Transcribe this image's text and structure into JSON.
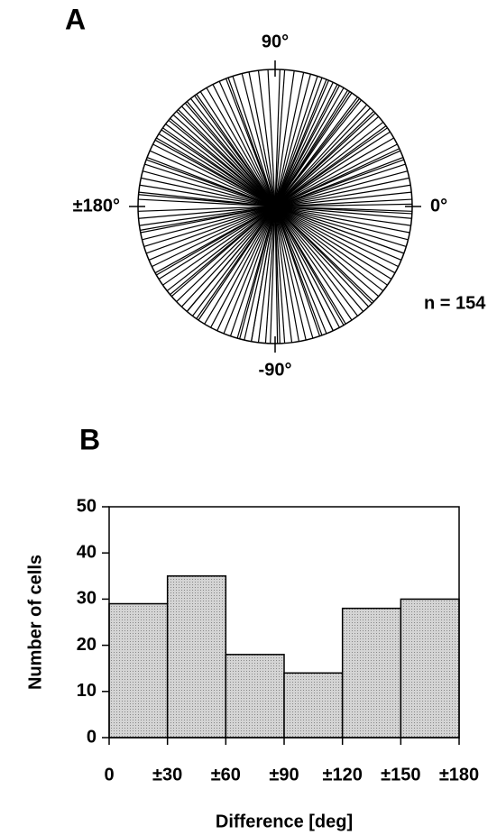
{
  "chart_data": [
    {
      "type": "polar",
      "panel": "A",
      "annotation": "n = 154",
      "angle_ticks": [
        {
          "value": 90,
          "label": "90°"
        },
        {
          "value": 0,
          "label": "0°"
        },
        {
          "value": -90,
          "label": "-90°"
        },
        {
          "value": 180,
          "label": "±180°"
        }
      ],
      "angles": [
        3,
        6,
        9,
        12,
        15,
        18,
        21,
        24,
        27,
        30,
        33,
        35,
        38,
        41,
        43,
        46,
        48,
        51,
        53,
        56,
        58,
        60,
        62,
        65,
        67,
        70,
        72,
        75,
        78,
        82,
        86,
        93,
        97,
        101,
        104,
        108,
        111,
        114,
        117,
        120,
        123,
        126,
        128,
        131,
        133,
        136,
        138,
        141,
        143,
        146,
        148,
        151,
        153,
        156,
        159,
        162,
        165,
        168,
        171,
        174,
        177,
        -178,
        -175,
        -172,
        -169,
        -166,
        -163,
        -160,
        -157,
        -154,
        -151,
        -148,
        -145,
        -142,
        -139,
        -136,
        -133,
        -130,
        -127,
        -124,
        -121,
        -118,
        -115,
        -112,
        -109,
        -106,
        -103,
        -100,
        -97,
        -94,
        -92,
        -89,
        -86,
        -83,
        -80,
        -77,
        -74,
        -71,
        -68,
        -65,
        -62,
        -59,
        -56,
        -53,
        -50,
        -47,
        -44,
        -41,
        -38,
        -35,
        -32,
        -29,
        -26,
        -23,
        -20,
        -17,
        -14,
        -11,
        -8,
        -5,
        -2,
        36,
        44,
        52,
        57,
        63,
        68,
        125,
        130,
        135,
        140,
        145,
        150,
        -125,
        -130,
        -140,
        -150,
        -60,
        -65,
        -70,
        -100,
        -105,
        20,
        25,
        110,
        160,
        -20,
        -170,
        175,
        -3,
        1,
        88,
        -88,
        -45
      ]
    },
    {
      "type": "histogram",
      "panel": "B",
      "xlabel": "Difference [deg]",
      "ylabel": "Number of cells",
      "bins": [
        0,
        30,
        60,
        90,
        120,
        150,
        180
      ],
      "values": [
        29,
        35,
        18,
        14,
        28,
        30
      ],
      "color": "#d4d4d4",
      "xlim": [
        0,
        180
      ],
      "xticks": [
        0,
        {
          "value": 30,
          "label": "±30"
        },
        {
          "value": 60,
          "label": "±60"
        },
        {
          "value": 90,
          "label": "±90"
        },
        {
          "value": 120,
          "label": "±120"
        },
        {
          "value": 150,
          "label": "±150"
        },
        {
          "value": 180,
          "label": "±180"
        }
      ],
      "ylim": [
        0,
        50
      ],
      "yticks": [
        0,
        10,
        20,
        30,
        40,
        50
      ]
    }
  ]
}
